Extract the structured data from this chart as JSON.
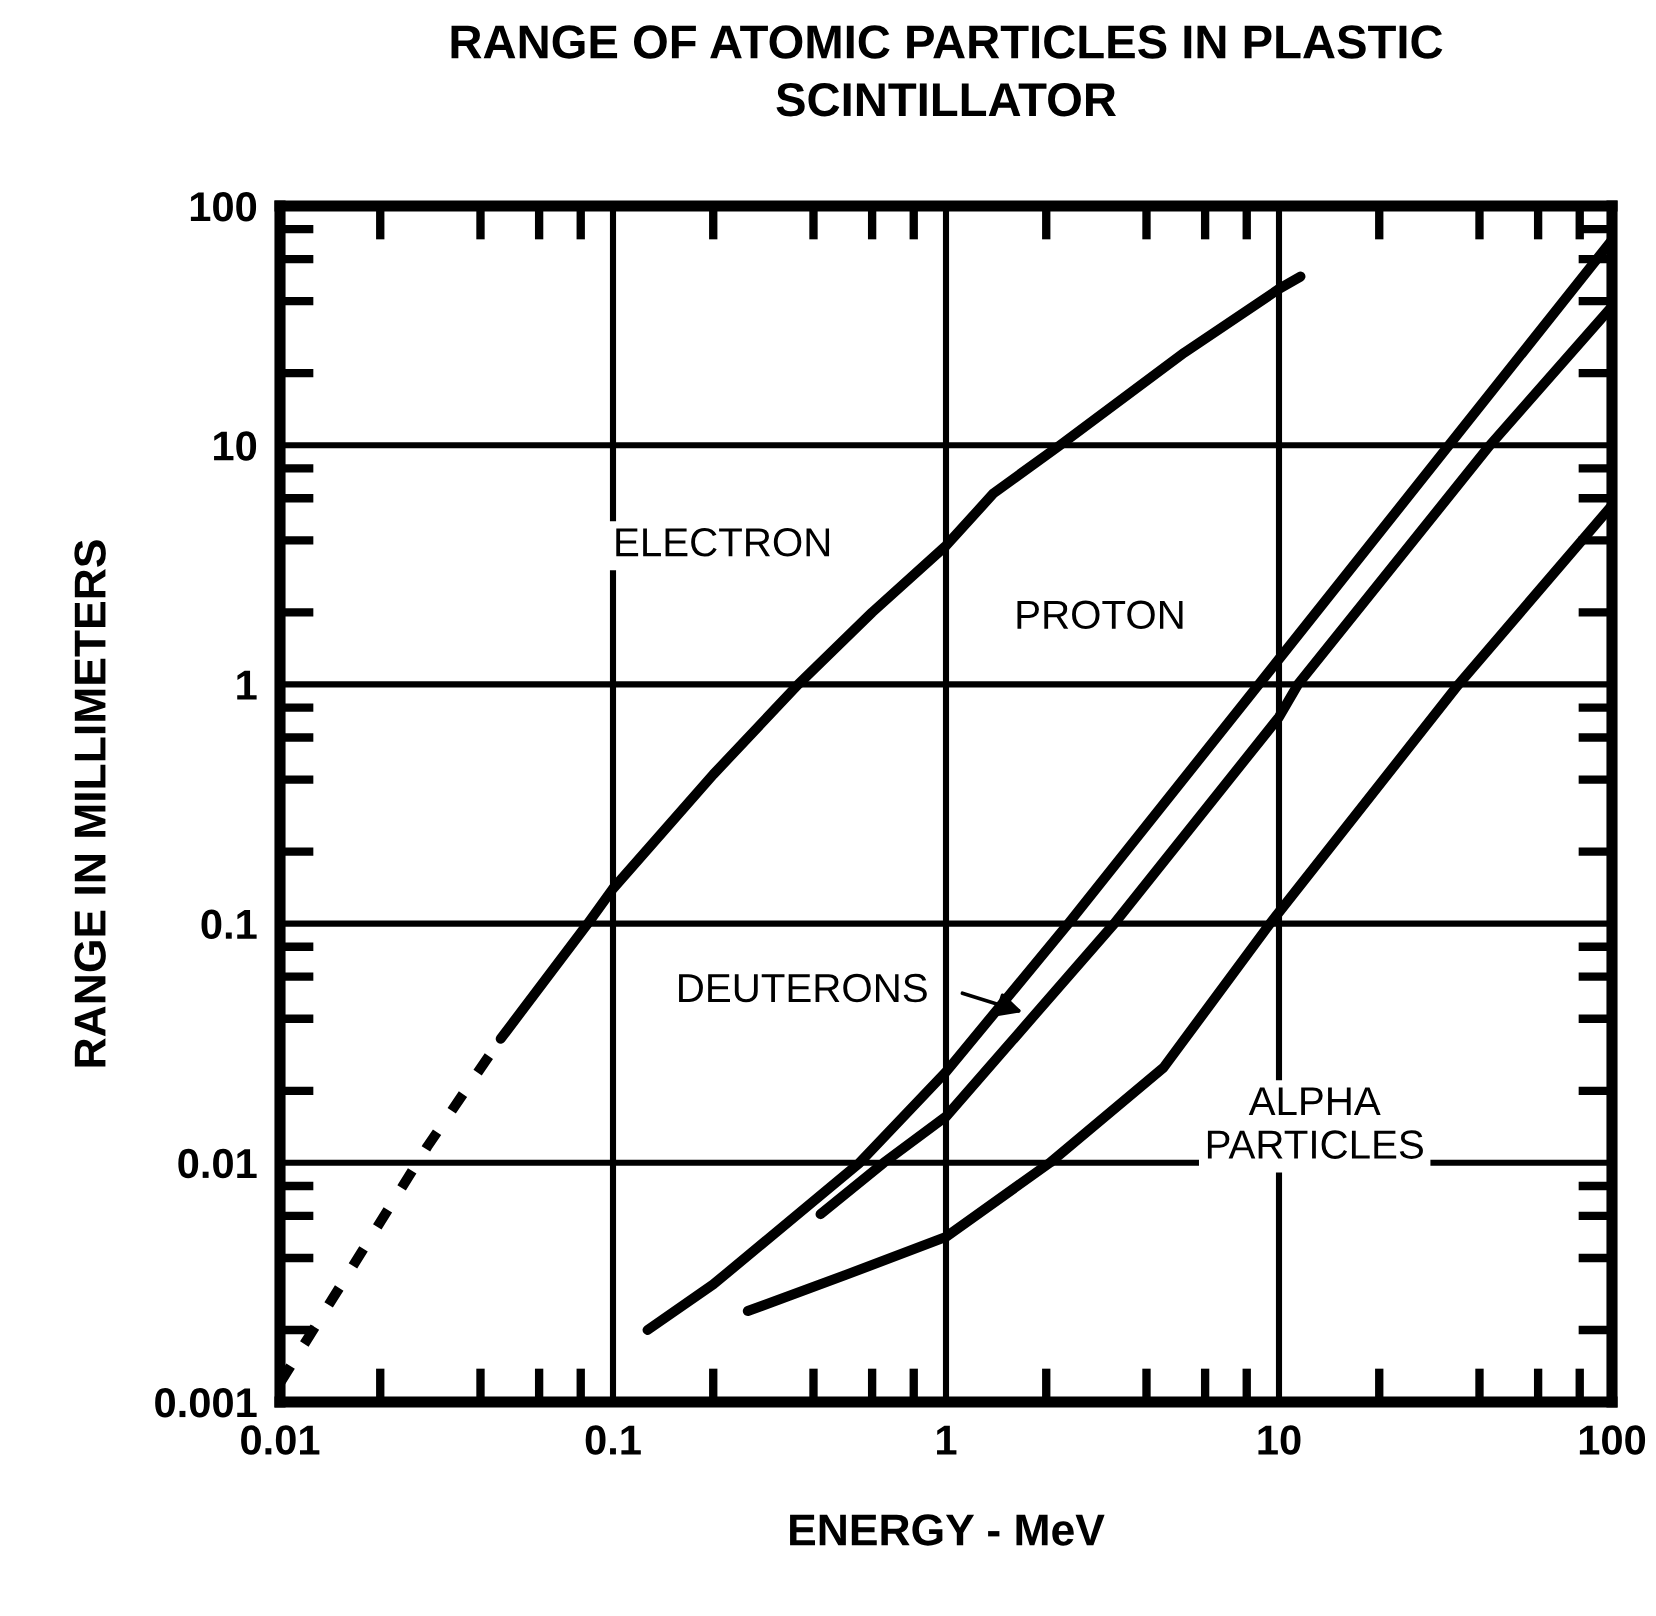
{
  "chart_data": {
    "type": "line",
    "title": "RANGE OF ATOMIC PARTICLES IN PLASTIC SCINTILLATOR",
    "xlabel": "ENERGY - MeV",
    "ylabel": "RANGE IN MILLIMETERS",
    "log": "xy",
    "grid": true,
    "marker": "none",
    "xlim": [
      0.01,
      100
    ],
    "ylim": [
      0.001,
      100
    ],
    "xticks": [
      0.01,
      0.1,
      1,
      10,
      100
    ],
    "yticks": [
      0.001,
      0.01,
      0.1,
      1,
      10,
      100
    ],
    "series": [
      {
        "name": "ELECTRON",
        "color": "#000000",
        "line_style": "solid",
        "x": [
          0.046,
          0.084,
          0.1,
          0.2,
          0.36,
          0.6,
          1,
          1.39,
          2.2,
          5.2,
          10,
          11.6
        ],
        "values": [
          0.033,
          0.1,
          0.14,
          0.42,
          1,
          2,
          3.8,
          6.3,
          10,
          24.4,
          45,
          50.7
        ]
      },
      {
        "color": "#000000",
        "line_style": "dashed",
        "x": [
          0.01,
          0.0277,
          0.046
        ],
        "values": [
          0.0012,
          0.0117,
          0.033
        ]
      },
      {
        "name": "PROTON",
        "color": "#000000",
        "line_style": "solid",
        "x": [
          0.127,
          0.2,
          0.55,
          1,
          2.33,
          8.7,
          32.4,
          100
        ],
        "values": [
          0.002,
          0.0031,
          0.01,
          0.024,
          0.1,
          1,
          10,
          72
        ]
      },
      {
        "name": "DEUTERONS",
        "color": "#000000",
        "line_style": "solid",
        "x": [
          0.42,
          0.65,
          1,
          3.2,
          10,
          11.4,
          43,
          100
        ],
        "values": [
          0.0061,
          0.01,
          0.0156,
          0.1,
          0.73,
          1,
          10,
          38
        ]
      },
      {
        "name": "ALPHA PARTICLES",
        "color": "#000000",
        "line_style": "solid",
        "x": [
          0.254,
          0.5,
          1,
          2.05,
          4.5,
          9.4,
          34.6,
          100
        ],
        "values": [
          0.0024,
          0.0034,
          0.0049,
          0.01,
          0.025,
          0.1,
          1,
          5.6
        ]
      }
    ]
  }
}
